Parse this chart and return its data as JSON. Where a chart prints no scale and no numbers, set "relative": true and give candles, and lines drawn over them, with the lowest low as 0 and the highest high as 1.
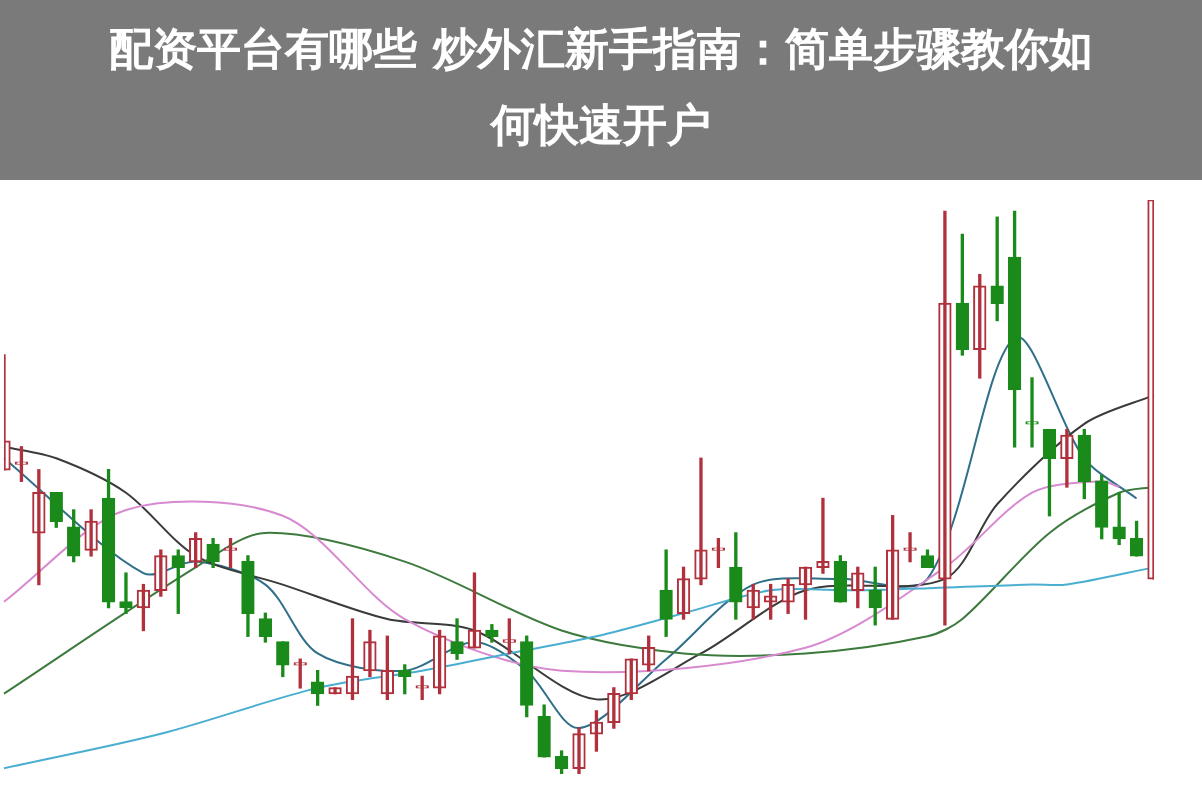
{
  "chart_data": {
    "type": "candlestick",
    "relative": true,
    "legend": false,
    "title": "配资平台有哪些 炒外汇新手指南：简单步骤教你如何快速开户",
    "categories": [
      null,
      null,
      null,
      null,
      null,
      null,
      null,
      null,
      null,
      null,
      null,
      null,
      null,
      null,
      null,
      null,
      null,
      null,
      null,
      null,
      null,
      null,
      null,
      null,
      null,
      null,
      null,
      null,
      null,
      null,
      null,
      null,
      null,
      null,
      null,
      null,
      null,
      null,
      null,
      null,
      null,
      null,
      null,
      null,
      null,
      null,
      null,
      null,
      null,
      null,
      null,
      null,
      null,
      null,
      null,
      null,
      null,
      null,
      null,
      null,
      null,
      null,
      null,
      null,
      null,
      null,
      null
    ],
    "ohlc": [
      [
        0.53,
        0.73,
        0.53,
        0.58
      ],
      [
        0.54,
        0.57,
        0.51,
        0.54
      ],
      [
        0.42,
        0.53,
        0.33,
        0.49
      ],
      [
        0.49,
        0.49,
        0.43,
        0.44
      ],
      [
        0.43,
        0.46,
        0.37,
        0.38
      ],
      [
        0.39,
        0.46,
        0.38,
        0.44
      ],
      [
        0.48,
        0.53,
        0.29,
        0.3
      ],
      [
        0.3,
        0.35,
        0.28,
        0.29
      ],
      [
        0.29,
        0.33,
        0.25,
        0.32
      ],
      [
        0.32,
        0.39,
        0.31,
        0.38
      ],
      [
        0.38,
        0.39,
        0.28,
        0.36
      ],
      [
        0.37,
        0.42,
        0.36,
        0.41
      ],
      [
        0.4,
        0.41,
        0.36,
        0.37
      ],
      [
        0.39,
        0.41,
        0.36,
        0.39
      ],
      [
        0.37,
        0.38,
        0.24,
        0.28
      ],
      [
        0.27,
        0.28,
        0.23,
        0.24
      ],
      [
        0.23,
        0.23,
        0.17,
        0.19
      ],
      [
        0.19,
        0.2,
        0.15,
        0.19
      ],
      [
        0.16,
        0.18,
        0.12,
        0.14
      ],
      [
        0.14,
        0.15,
        0.14,
        0.15
      ],
      [
        0.14,
        0.27,
        0.13,
        0.17
      ],
      [
        0.18,
        0.25,
        0.17,
        0.23
      ],
      [
        0.14,
        0.24,
        0.13,
        0.18
      ],
      [
        0.18,
        0.19,
        0.14,
        0.17
      ],
      [
        0.15,
        0.17,
        0.13,
        0.15
      ],
      [
        0.15,
        0.25,
        0.14,
        0.24
      ],
      [
        0.23,
        0.27,
        0.2,
        0.21
      ],
      [
        0.22,
        0.35,
        0.22,
        0.25
      ],
      [
        0.25,
        0.26,
        0.23,
        0.24
      ],
      [
        0.23,
        0.27,
        0.21,
        0.23
      ],
      [
        0.23,
        0.24,
        0.1,
        0.12
      ],
      [
        0.1,
        0.12,
        0.03,
        0.03
      ],
      [
        0.03,
        0.04,
        0,
        0.01
      ],
      [
        0.01,
        0.08,
        0,
        0.07
      ],
      [
        0.07,
        0.11,
        0.04,
        0.09
      ],
      [
        0.09,
        0.15,
        0.08,
        0.14
      ],
      [
        0.14,
        0.2,
        0.13,
        0.2
      ],
      [
        0.19,
        0.24,
        0.18,
        0.22
      ],
      [
        0.32,
        0.39,
        0.24,
        0.27
      ],
      [
        0.28,
        0.36,
        0.27,
        0.34
      ],
      [
        0.34,
        0.55,
        0.33,
        0.39
      ],
      [
        0.39,
        0.41,
        0.36,
        0.39
      ],
      [
        0.36,
        0.42,
        0.27,
        0.3
      ],
      [
        0.29,
        0.33,
        0.27,
        0.32
      ],
      [
        0.3,
        0.33,
        0.27,
        0.31
      ],
      [
        0.3,
        0.34,
        0.28,
        0.33
      ],
      [
        0.33,
        0.36,
        0.27,
        0.36
      ],
      [
        0.36,
        0.48,
        0.35,
        0.37
      ],
      [
        0.37,
        0.38,
        0.3,
        0.3
      ],
      [
        0.32,
        0.36,
        0.29,
        0.35
      ],
      [
        0.32,
        0.36,
        0.26,
        0.29
      ],
      [
        0.27,
        0.45,
        0.27,
        0.39
      ],
      [
        0.39,
        0.42,
        0.37,
        0.39
      ],
      [
        0.38,
        0.39,
        0.36,
        0.36
      ],
      [
        0.34,
        0.98,
        0.26,
        0.82
      ],
      [
        0.82,
        0.94,
        0.73,
        0.74
      ],
      [
        0.74,
        0.87,
        0.69,
        0.85
      ],
      [
        0.85,
        0.97,
        0.79,
        0.82
      ],
      [
        0.9,
        0.98,
        0.57,
        0.67
      ],
      [
        0.61,
        0.69,
        0.57,
        0.61
      ],
      [
        0.6,
        0.6,
        0.45,
        0.55
      ],
      [
        0.55,
        0.6,
        0.5,
        0.59
      ],
      [
        0.59,
        0.6,
        0.48,
        0.51
      ],
      [
        0.51,
        0.52,
        0.41,
        0.43
      ],
      [
        0.43,
        0.49,
        0.4,
        0.41
      ],
      [
        0.41,
        0.44,
        0.38,
        0.38
      ],
      [
        0.34,
        1,
        0.34,
        1
      ]
    ],
    "colors": [
      "#b0303c",
      "#b0303c",
      "#b0303c",
      "#1a8a1a",
      "#1a8a1a",
      "#b0303c",
      "#1a8a1a",
      "#1a8a1a",
      "#b0303c",
      "#b0303c",
      "#1a8a1a",
      "#b0303c",
      "#1a8a1a",
      "#b0303c",
      "#1a8a1a",
      "#1a8a1a",
      "#1a8a1a",
      "#b0303c",
      "#1a8a1a",
      "#b0303c",
      "#b0303c",
      "#b0303c",
      "#b0303c",
      "#1a8a1a",
      "#b0303c",
      "#b0303c",
      "#1a8a1a",
      "#b0303c",
      "#1a8a1a",
      "#b0303c",
      "#1a8a1a",
      "#1a8a1a",
      "#1a8a1a",
      "#b0303c",
      "#b0303c",
      "#b0303c",
      "#b0303c",
      "#b0303c",
      "#1a8a1a",
      "#b0303c",
      "#b0303c",
      "#b0303c",
      "#1a8a1a",
      "#b0303c",
      "#b0303c",
      "#b0303c",
      "#b0303c",
      "#b0303c",
      "#1a8a1a",
      "#b0303c",
      "#1a8a1a",
      "#b0303c",
      "#b0303c",
      "#1a8a1a",
      "#b0303c",
      "#1a8a1a",
      "#b0303c",
      "#1a8a1a",
      "#1a8a1a",
      "#1a8a1a",
      "#1a8a1a",
      "#b0303c",
      "#1a8a1a",
      "#1a8a1a",
      "#1a8a1a",
      "#1a8a1a",
      "#b0303c"
    ],
    "series": [
      {
        "type": "line",
        "color": "#4aaed0",
        "values": [
          0.01,
          null,
          null,
          null,
          null,
          null,
          null,
          null,
          null,
          0.07,
          null,
          null,
          null,
          null,
          null,
          null,
          null,
          null,
          0.15,
          null,
          null,
          null,
          null,
          null,
          0.18,
          null,
          null,
          null,
          null,
          0.21,
          null,
          null,
          null,
          null,
          0.24,
          null,
          null,
          null,
          null,
          0.28,
          null,
          null,
          null,
          null,
          0.32,
          null,
          null,
          null,
          null,
          0.32,
          null,
          null,
          null,
          null,
          null,
          null,
          null,
          null,
          null,
          0.33,
          null,
          0.33,
          null,
          null,
          null,
          null,
          0.36
        ]
      },
      {
        "type": "line",
        "color": "#d88ad0",
        "values": [
          0.3,
          null,
          null,
          null,
          null,
          null,
          null,
          0.46,
          null,
          null,
          null,
          null,
          null,
          null,
          null,
          null,
          0.45,
          null,
          null,
          null,
          null,
          null,
          null,
          0.27,
          null,
          null,
          null,
          null,
          null,
          null,
          null,
          null,
          0.18,
          null,
          null,
          null,
          null,
          null,
          null,
          null,
          null,
          null,
          null,
          null,
          null,
          null,
          0.22,
          null,
          null,
          null,
          null,
          null,
          null,
          null,
          0.36,
          null,
          null,
          null,
          null,
          0.49,
          null,
          null,
          null,
          0.51,
          0.5,
          null,
          null
        ]
      },
      {
        "type": "line",
        "color": "#3d7a3d",
        "values": [
          0.14,
          null,
          null,
          null,
          null,
          null,
          null,
          null,
          null,
          null,
          null,
          0.36,
          null,
          null,
          null,
          0.42,
          null,
          null,
          null,
          null,
          null,
          null,
          null,
          0.37,
          null,
          null,
          null,
          null,
          null,
          null,
          null,
          null,
          0.25,
          null,
          null,
          null,
          null,
          null,
          null,
          0.21,
          null,
          null,
          null,
          null,
          null,
          null,
          0.21,
          null,
          null,
          null,
          null,
          null,
          null,
          0.24,
          null,
          0.27,
          null,
          null,
          null,
          null,
          0.42,
          null,
          null,
          null,
          0.49,
          null,
          0.5
        ]
      },
      {
        "type": "line",
        "color": "#3a3a3a",
        "values": [
          0.57,
          null,
          null,
          0.55,
          null,
          null,
          null,
          0.49,
          null,
          null,
          null,
          0.38,
          null,
          null,
          null,
          null,
          0.33,
          null,
          null,
          null,
          null,
          null,
          0.27,
          null,
          null,
          null,
          null,
          0.25,
          null,
          null,
          null,
          null,
          null,
          null,
          0.13,
          null,
          null,
          null,
          null,
          null,
          0.21,
          null,
          null,
          null,
          null,
          null,
          0.32,
          null,
          null,
          null,
          null,
          null,
          null,
          null,
          0.34,
          null,
          null,
          0.47,
          null,
          null,
          null,
          null,
          0.61,
          null,
          null,
          null,
          0.66
        ]
      },
      {
        "type": "line",
        "color": "#2f6f8a",
        "values": [
          0.55,
          null,
          null,
          null,
          null,
          null,
          null,
          null,
          0.35,
          null,
          null,
          0.37,
          null,
          null,
          null,
          0.33,
          null,
          null,
          0.21,
          null,
          null,
          null,
          null,
          0.18,
          null,
          null,
          null,
          0.23,
          null,
          null,
          0.18,
          null,
          null,
          0.08,
          null,
          null,
          null,
          null,
          0.2,
          null,
          null,
          null,
          null,
          0.33,
          null,
          null,
          null,
          null,
          0.34,
          null,
          null,
          null,
          null,
          0.34,
          null,
          null,
          null,
          null,
          0.76,
          null,
          null,
          null,
          0.55,
          null,
          null,
          0.48,
          null
        ]
      }
    ]
  }
}
